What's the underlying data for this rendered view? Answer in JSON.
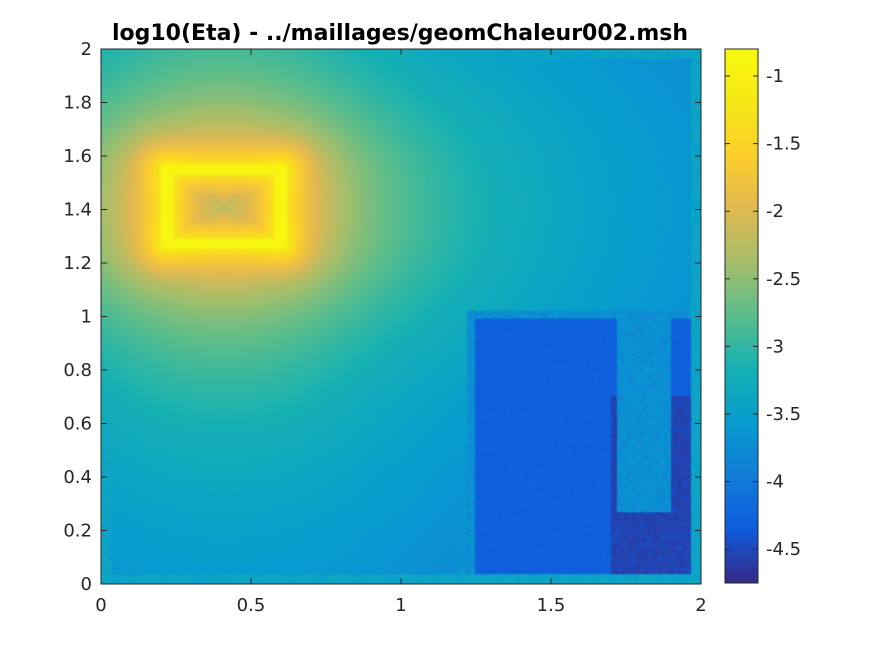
{
  "chart_data": {
    "type": "heatmap",
    "title": "log10(Eta) - ../maillages/geomChaleur002.msh",
    "xlabel": "",
    "ylabel": "",
    "xlim": [
      0,
      2
    ],
    "ylim": [
      0,
      2
    ],
    "x_ticks": [
      {
        "value": 0,
        "label": "0"
      },
      {
        "value": 0.5,
        "label": "0.5"
      },
      {
        "value": 1,
        "label": "1"
      },
      {
        "value": 1.5,
        "label": "1.5"
      },
      {
        "value": 2,
        "label": "2"
      }
    ],
    "y_ticks": [
      {
        "value": 0,
        "label": "0"
      },
      {
        "value": 0.2,
        "label": "0.2"
      },
      {
        "value": 0.4,
        "label": "0.4"
      },
      {
        "value": 0.6,
        "label": "0.6"
      },
      {
        "value": 0.8,
        "label": "0.8"
      },
      {
        "value": 1,
        "label": "1"
      },
      {
        "value": 1.2,
        "label": "1.2"
      },
      {
        "value": 1.4,
        "label": "1.4"
      },
      {
        "value": 1.6,
        "label": "1.6"
      },
      {
        "value": 1.8,
        "label": "1.8"
      },
      {
        "value": 2,
        "label": "2"
      }
    ],
    "colormap": "parula",
    "colorbar": {
      "clim": [
        -4.75,
        -0.8
      ],
      "ticks": [
        {
          "value": -1,
          "label": "-1"
        },
        {
          "value": -1.5,
          "label": "-1.5"
        },
        {
          "value": -2,
          "label": "-2"
        },
        {
          "value": -2.5,
          "label": "-2.5"
        },
        {
          "value": -3,
          "label": "-3"
        },
        {
          "value": -3.5,
          "label": "-3.5"
        },
        {
          "value": -4,
          "label": "-4"
        },
        {
          "value": -4.5,
          "label": "-4.5"
        }
      ]
    },
    "features": {
      "hot_rectangle": {
        "x0": 0.22,
        "x1": 0.6,
        "y0": 1.27,
        "y1": 1.55,
        "value": -1.0
      },
      "inner_rectangle_boundary": {
        "x0": 1.22,
        "x1": 2.0,
        "y0": 0.0,
        "y1": 1.02,
        "value": -3.6
      },
      "slot": {
        "x0": 1.76,
        "x1": 1.86,
        "y0": 0.3,
        "y1": 1.0,
        "value": -3.6
      },
      "outer_boundary_value": -3.4,
      "minimum_region": {
        "x": 1.8,
        "y": 0.4,
        "value": -4.75
      }
    }
  }
}
